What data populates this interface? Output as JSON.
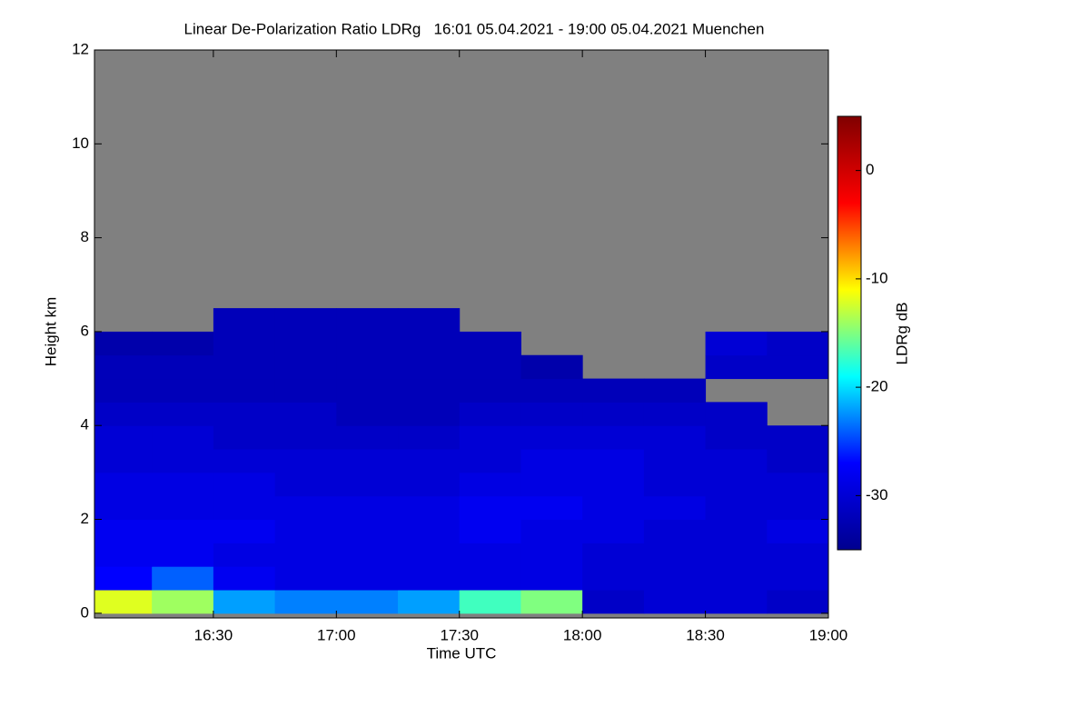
{
  "chart_data": {
    "type": "heatmap",
    "title": "Linear De-Polarization Ratio LDRg   16:01 05.04.2021 - 19:00 05.04.2021 Muenchen",
    "xlabel": "Time UTC",
    "ylabel": "Height km",
    "colorbar_label": "LDRg dB",
    "xlim": [
      16.0167,
      19.0
    ],
    "ylim": [
      -0.1,
      12
    ],
    "xticks": [
      {
        "value": 16.5,
        "label": "16:30"
      },
      {
        "value": 17.0,
        "label": "17:00"
      },
      {
        "value": 17.5,
        "label": "17:30"
      },
      {
        "value": 18.0,
        "label": "18:00"
      },
      {
        "value": 18.5,
        "label": "18:30"
      },
      {
        "value": 19.0,
        "label": "19:00"
      }
    ],
    "yticks": [
      0,
      2,
      4,
      6,
      8,
      10,
      12
    ],
    "clim": [
      -35,
      5
    ],
    "cticks": [
      0,
      -10,
      -20,
      -30
    ],
    "colormap": [
      "#00008f",
      "#0000ff",
      "#00ffff",
      "#ffff00",
      "#ff0000",
      "#800000"
    ],
    "nan_color": "#808080",
    "xbins": [
      16.0167,
      16.25,
      16.5,
      16.75,
      17.0,
      17.25,
      17.5,
      17.75,
      18.0,
      18.25,
      18.5,
      18.75,
      19.0
    ],
    "ybins": [
      0,
      0.5,
      1,
      1.5,
      2,
      2.5,
      3,
      3.5,
      4,
      4.5,
      5,
      5.5,
      6,
      6.5
    ],
    "z": [
      [
        -12,
        -14,
        -22,
        -23,
        -23,
        -22,
        -17,
        -15,
        -31,
        -30,
        -30,
        -31
      ],
      [
        -27,
        -24,
        -28,
        -29,
        -29,
        -29,
        -29,
        -29,
        -30,
        -30,
        -30,
        -30
      ],
      [
        -28,
        -28,
        -29,
        -29,
        -29,
        -29,
        -29,
        -29,
        -30,
        -30,
        -30,
        -30
      ],
      [
        -28,
        -28,
        -28,
        -29,
        -29,
        -29,
        -28,
        -29,
        -29,
        -30,
        -30,
        -29
      ],
      [
        -29,
        -29,
        -29,
        -29,
        -29,
        -29,
        -28,
        -28,
        -29,
        -29,
        -30,
        -30
      ],
      [
        -29,
        -29,
        -29,
        -30,
        -30,
        -30,
        -29,
        -29,
        -29,
        -30,
        -30,
        -30
      ],
      [
        -30,
        -30,
        -30,
        -30,
        -30,
        -30,
        -30,
        -29,
        -29,
        -30,
        -30,
        -31
      ],
      [
        -30,
        -30,
        -31,
        -31,
        -31,
        -31,
        -30,
        -30,
        -30,
        -30,
        -31,
        -31
      ],
      [
        -31,
        -31,
        -31,
        -31,
        -32,
        -32,
        -31,
        -31,
        -31,
        -31,
        -31,
        null
      ],
      [
        -32,
        -32,
        -32,
        -32,
        -32,
        -32,
        -32,
        -32,
        -32,
        -32,
        null,
        null
      ],
      [
        -32,
        -32,
        -32,
        -32,
        -32,
        -32,
        -32,
        -33,
        null,
        null,
        -31,
        -31
      ],
      [
        -33,
        -33,
        -32,
        -32,
        -32,
        -32,
        -32,
        null,
        null,
        null,
        -30,
        -31
      ],
      [
        null,
        null,
        -32,
        -32,
        -32,
        -32,
        null,
        null,
        null,
        null,
        null,
        null
      ]
    ]
  }
}
